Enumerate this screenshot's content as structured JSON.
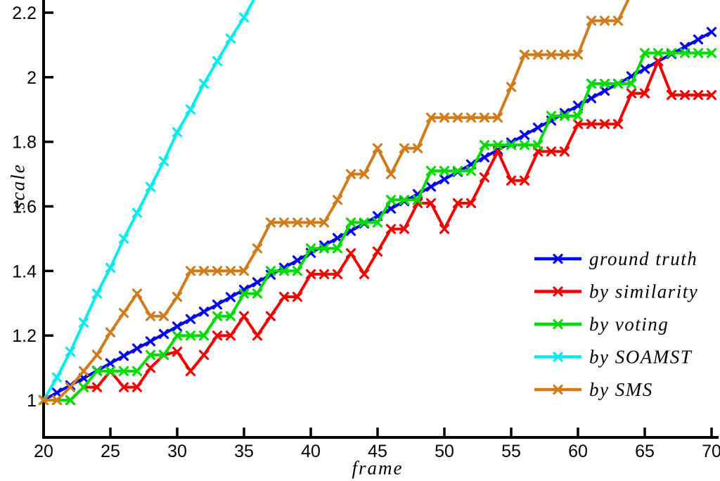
{
  "chart_data": {
    "type": "line",
    "title": "",
    "xlabel": "frame",
    "ylabel": "scale",
    "xlim": [
      20,
      70
    ],
    "ylim": [
      1.0,
      2.2
    ],
    "xticks": [
      20,
      25,
      30,
      35,
      40,
      45,
      50,
      55,
      60,
      65,
      70
    ],
    "yticks": [
      1.0,
      1.2,
      1.4,
      1.6,
      1.8,
      2.0,
      2.2
    ],
    "ytick_labels": [
      "1",
      "1.2",
      "1.4",
      "1.6",
      "1.8",
      "2",
      "2.2"
    ],
    "grid": false,
    "marker": "x",
    "legend_position": "lower-right-inside-no-box",
    "axis_color": "#000000",
    "x_start": 20,
    "x_frames": [
      20,
      21,
      22,
      23,
      24,
      25,
      26,
      27,
      28,
      29,
      30,
      31,
      32,
      33,
      34,
      35,
      36,
      37,
      38,
      39,
      40,
      41,
      42,
      43,
      44,
      45,
      46,
      47,
      48,
      49,
      50,
      51,
      52,
      53,
      54,
      55,
      56,
      57,
      58,
      59,
      60,
      61,
      62,
      63,
      64,
      65,
      66,
      67,
      68,
      69,
      70
    ],
    "series": [
      {
        "name": "ground truth",
        "color": "#0000f2",
        "values": [
          1.0,
          1.023,
          1.046,
          1.068,
          1.091,
          1.114,
          1.137,
          1.16,
          1.182,
          1.205,
          1.228,
          1.251,
          1.274,
          1.296,
          1.319,
          1.342,
          1.365,
          1.388,
          1.41,
          1.433,
          1.456,
          1.479,
          1.502,
          1.524,
          1.547,
          1.57,
          1.593,
          1.616,
          1.638,
          1.661,
          1.684,
          1.707,
          1.73,
          1.752,
          1.775,
          1.798,
          1.821,
          1.844,
          1.866,
          1.889,
          1.912,
          1.935,
          1.958,
          1.98,
          2.003,
          2.026,
          2.049,
          2.072,
          2.094,
          2.117,
          2.14
        ]
      },
      {
        "name": "by similarity",
        "color": "#f30000",
        "values": [
          1.0,
          1.0,
          1.0,
          1.04,
          1.04,
          1.09,
          1.04,
          1.04,
          1.1,
          1.14,
          1.15,
          1.09,
          1.14,
          1.2,
          1.2,
          1.26,
          1.2,
          1.26,
          1.32,
          1.32,
          1.39,
          1.39,
          1.39,
          1.455,
          1.39,
          1.46,
          1.53,
          1.53,
          1.61,
          1.61,
          1.53,
          1.61,
          1.61,
          1.69,
          1.77,
          1.68,
          1.68,
          1.77,
          1.77,
          1.77,
          1.855,
          1.855,
          1.855,
          1.855,
          1.95,
          1.95,
          2.05,
          1.945,
          1.945,
          1.945,
          1.945
        ]
      },
      {
        "name": "by voting",
        "color": "#00dc00",
        "values": [
          1.0,
          1.0,
          1.0,
          1.04,
          1.09,
          1.09,
          1.09,
          1.09,
          1.14,
          1.14,
          1.2,
          1.2,
          1.2,
          1.26,
          1.26,
          1.33,
          1.33,
          1.4,
          1.4,
          1.4,
          1.47,
          1.47,
          1.47,
          1.55,
          1.55,
          1.55,
          1.62,
          1.62,
          1.62,
          1.71,
          1.71,
          1.71,
          1.71,
          1.79,
          1.79,
          1.79,
          1.79,
          1.79,
          1.88,
          1.88,
          1.88,
          1.98,
          1.98,
          1.98,
          1.98,
          2.075,
          2.075,
          2.075,
          2.075,
          2.075,
          2.075
        ]
      },
      {
        "name": "by SOAMST",
        "color": "#00eded",
        "values": [
          1.0,
          1.07,
          1.15,
          1.24,
          1.33,
          1.41,
          1.5,
          1.58,
          1.66,
          1.74,
          1.83,
          1.9,
          1.98,
          2.05,
          2.12,
          2.185,
          2.26,
          null,
          null,
          null,
          null,
          null,
          null,
          null,
          null,
          null,
          null,
          null,
          null,
          null,
          null,
          null,
          null,
          null,
          null,
          null,
          null,
          null,
          null,
          null,
          null,
          null,
          null,
          null,
          null,
          null,
          null,
          null,
          null,
          null,
          null
        ]
      },
      {
        "name": "by SMS",
        "color": "#d07c1c",
        "values": [
          1.0,
          1.0,
          1.04,
          1.09,
          1.14,
          1.21,
          1.27,
          1.33,
          1.26,
          1.26,
          1.32,
          1.4,
          1.4,
          1.4,
          1.4,
          1.4,
          1.47,
          1.55,
          1.55,
          1.55,
          1.55,
          1.55,
          1.62,
          1.7,
          1.7,
          1.78,
          1.7,
          1.78,
          1.78,
          1.875,
          1.875,
          1.875,
          1.875,
          1.875,
          1.875,
          1.97,
          2.07,
          2.07,
          2.07,
          2.07,
          2.07,
          2.175,
          2.175,
          2.175,
          2.26,
          null,
          null,
          null,
          null,
          null,
          null
        ]
      }
    ]
  }
}
